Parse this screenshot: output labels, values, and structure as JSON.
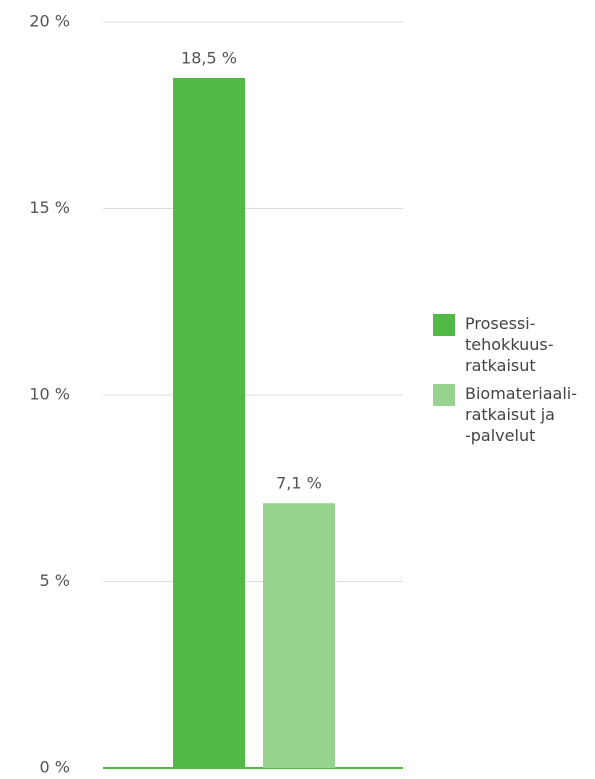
{
  "chart_data": {
    "type": "bar",
    "series": [
      {
        "name": "Prosessi-\ntehokkuus-\nratkaisut",
        "color": "#52b947",
        "values": [
          18.5
        ],
        "value_labels": [
          "18,5 %"
        ]
      },
      {
        "name": "Biomateriaali-\nratkaisut ja\n-palvelut",
        "color": "#96d38f",
        "values": [
          7.1
        ],
        "value_labels": [
          "7,1 %"
        ]
      }
    ],
    "ylim": [
      0,
      20
    ],
    "yticks": [
      {
        "value": 0,
        "label": "0 %"
      },
      {
        "value": 5,
        "label": "5 %"
      },
      {
        "value": 10,
        "label": "10 %"
      },
      {
        "value": 15,
        "label": "15 %"
      },
      {
        "value": 20,
        "label": "20 %"
      }
    ],
    "grid": true
  }
}
